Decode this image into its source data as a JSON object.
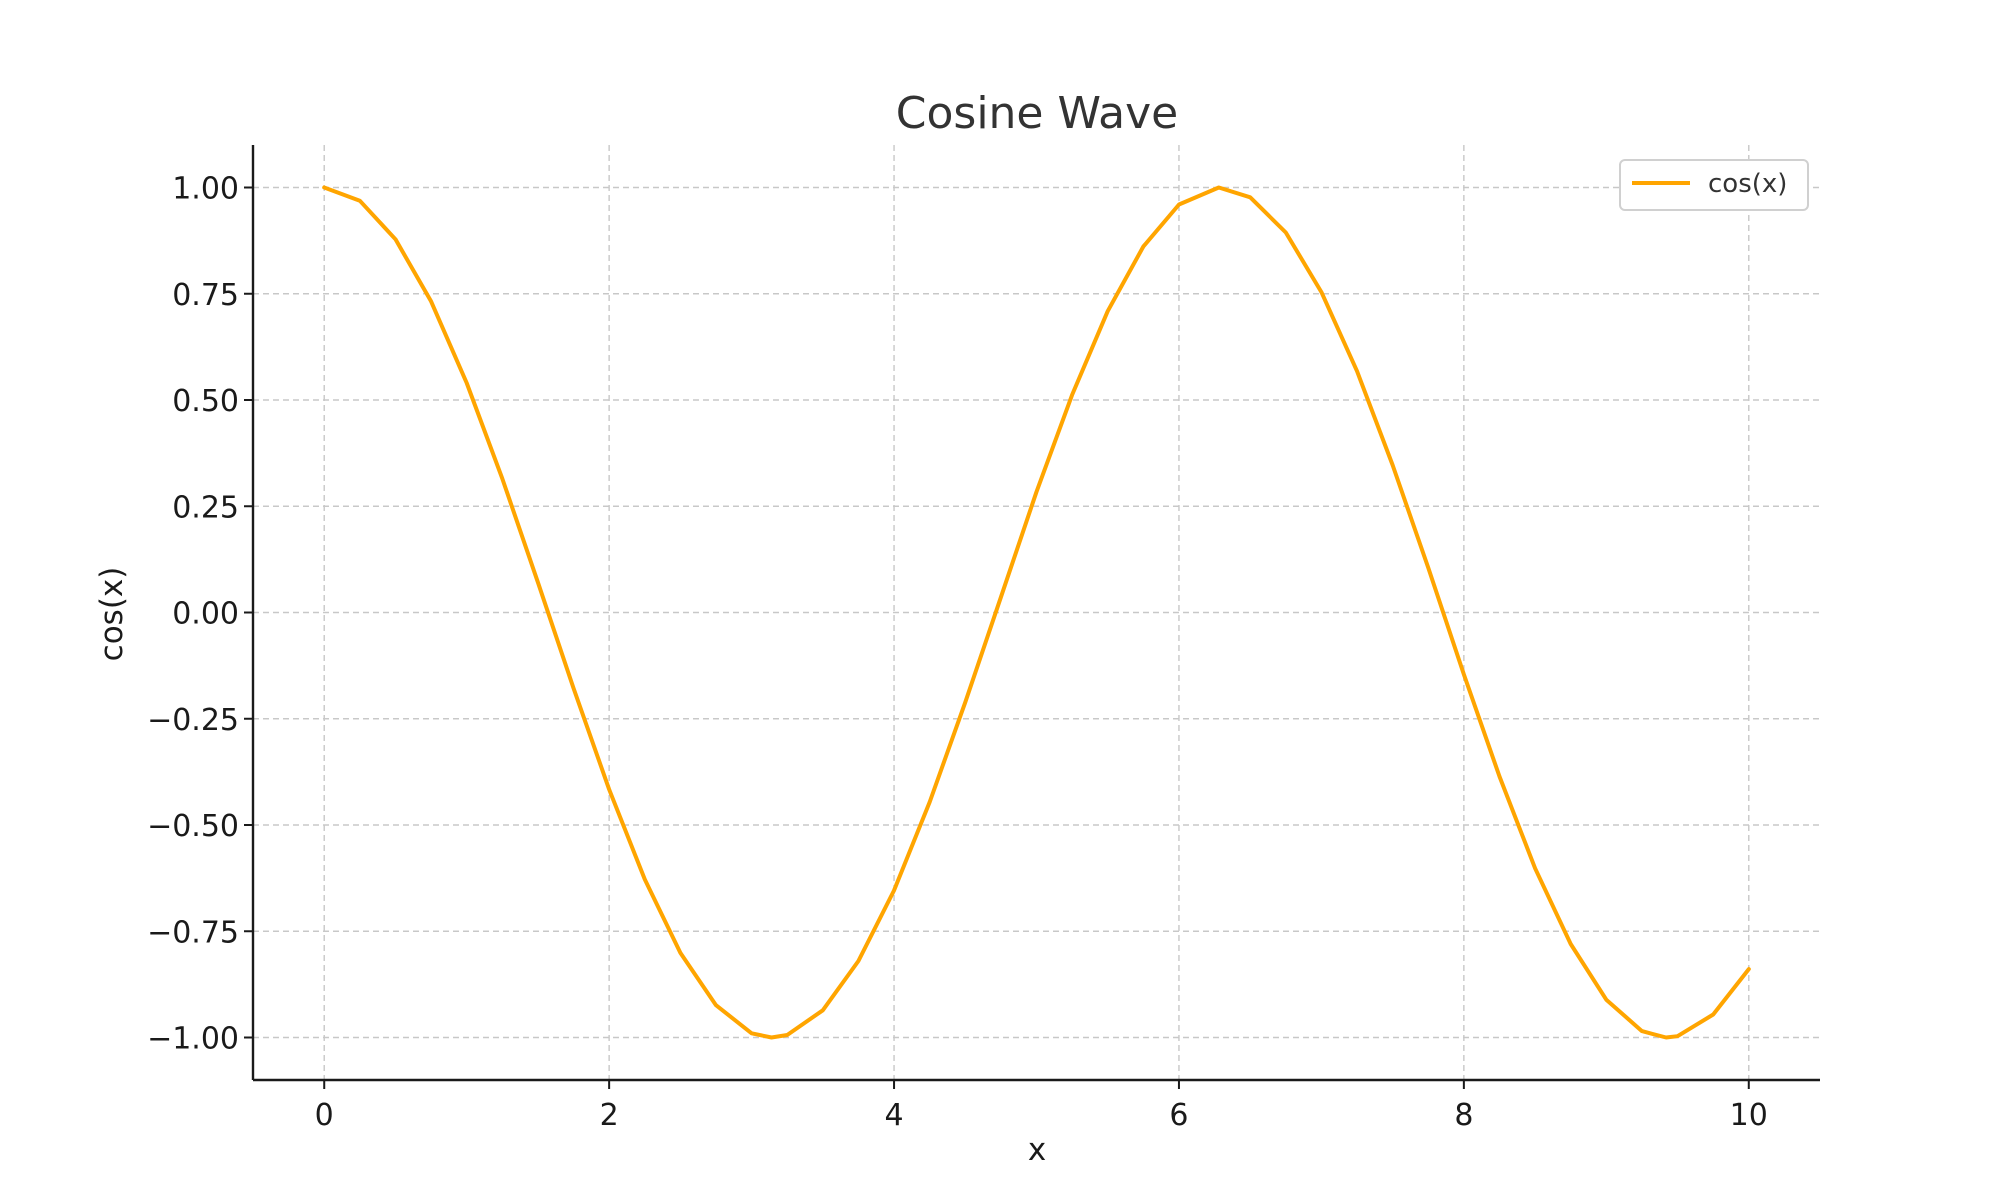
{
  "chart_data": {
    "type": "line",
    "title": "Cosine Wave",
    "xlabel": "x",
    "ylabel": "cos(x)",
    "xlim": [
      -0.5,
      10.5
    ],
    "ylim": [
      -1.1,
      1.1
    ],
    "xticks": [
      0,
      2,
      4,
      6,
      8,
      10
    ],
    "xtick_labels": [
      "0",
      "2",
      "4",
      "6",
      "8",
      "10"
    ],
    "yticks": [
      1.0,
      0.75,
      0.5,
      0.25,
      0.0,
      -0.25,
      -0.5,
      -0.75,
      -1.0
    ],
    "ytick_labels": [
      "1.00",
      "0.75",
      "0.50",
      "0.25",
      "0.00",
      "−0.25",
      "−0.50",
      "−0.75",
      "−1.00"
    ],
    "grid": true,
    "legend_position": "top-right",
    "series": [
      {
        "name": "cos(x)",
        "color": "#FFA500",
        "x": [
          0,
          0.25,
          0.5,
          0.75,
          1,
          1.25,
          1.5,
          1.75,
          2,
          2.25,
          2.5,
          2.75,
          3,
          3.14,
          3.25,
          3.5,
          3.75,
          4,
          4.25,
          4.5,
          4.75,
          5,
          5.25,
          5.5,
          5.75,
          6,
          6.28,
          6.5,
          6.75,
          7,
          7.25,
          7.5,
          7.75,
          8,
          8.25,
          8.5,
          8.75,
          9,
          9.25,
          9.42,
          9.5,
          9.75,
          10
        ],
        "y": [
          1.0,
          0.969,
          0.878,
          0.732,
          0.54,
          0.315,
          0.071,
          -0.178,
          -0.416,
          -0.628,
          -0.801,
          -0.924,
          -0.99,
          -1.0,
          -0.994,
          -0.936,
          -0.82,
          -0.654,
          -0.446,
          -0.211,
          0.036,
          0.284,
          0.512,
          0.709,
          0.861,
          0.96,
          1.0,
          0.977,
          0.894,
          0.754,
          0.568,
          0.347,
          0.105,
          -0.146,
          -0.386,
          -0.602,
          -0.78,
          -0.911,
          -0.985,
          -1.0,
          -0.997,
          -0.946,
          -0.839
        ]
      }
    ]
  }
}
